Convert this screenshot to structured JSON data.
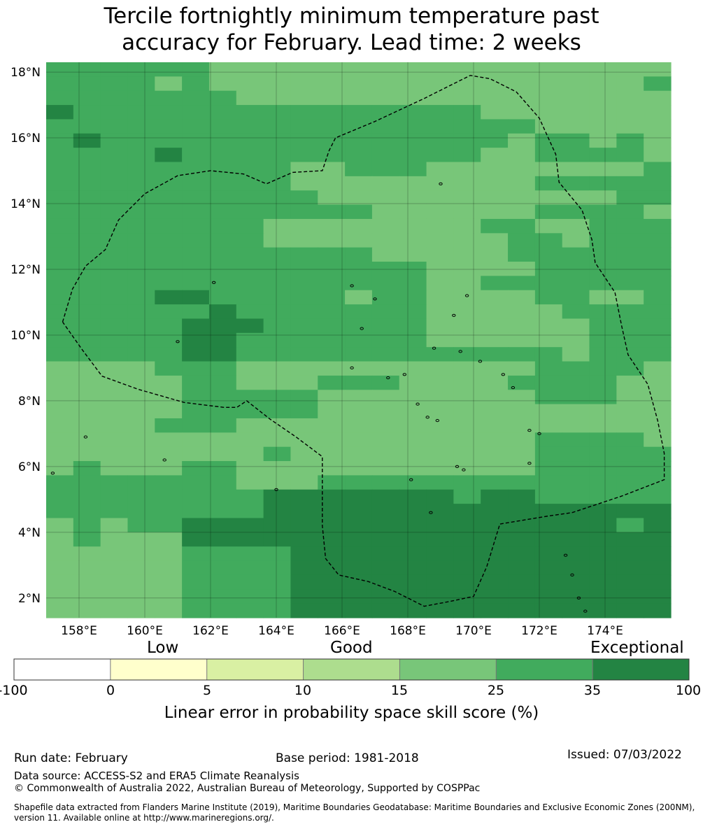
{
  "title": "Tercile fortnightly minimum temperature past\naccuracy for February. Lead time: 2 weeks",
  "map": {
    "lon_range": [
      157.0,
      176.0
    ],
    "lat_range": [
      1.4,
      18.3
    ],
    "lon_ticks": [
      "158°E",
      "160°E",
      "162°E",
      "164°E",
      "166°E",
      "168°E",
      "170°E",
      "172°E",
      "174°E"
    ],
    "lat_ticks": [
      "18°N",
      "16°N",
      "14°N",
      "12°N",
      "10°N",
      "8°N",
      "6°N",
      "4°N",
      "2°N"
    ],
    "colors": {
      "c0": "#ffffcc",
      "c1": "#d9f0a3",
      "c2": "#addd8e",
      "c3": "#78c679",
      "c4": "#41ab5d",
      "c5": "#238443"
    },
    "grid_rows": [
      "44444433333333333333333",
      "44443433333333333333334",
      "44444443333333333333333",
      "54444444444444443333333",
      "44444444444444444433333",
      "45444444444444444344343",
      "44445444444444443344443",
      "44444444433444333333334",
      "44444444433333333344444",
      "44444444443333333333344",
      "44444444444433333344443",
      "44444444333333334433444",
      "44444444333333333443444",
      "44444444444433333444444",
      "44444444444444333344444",
      "44444444444444334444444",
      "44445544444344333344334",
      "44444454444444333334444",
      "44444555444444333333444",
      "44444554444444333333444",
      "44444554444444444443444",
      "33334443333333333344443",
      "33333443334443333444433",
      "33333444443333333344433",
      "33333444443333333333333",
      "33334443333333333333333",
      "33333333333333333344443",
      "33333333433333333344444",
      "34333443333333333344444",
      "44444443334444444444444",
      "44444444555555545544444",
      "44444444555555555555555",
      "34344555555555555555545",
      "34333555555555555555555",
      "33333444455555555555555",
      "33333444455555555555555",
      "33333444455555555555555",
      "33333444455555555555555",
      "33333444455555555555555"
    ],
    "boundary_1": [
      [
        157.5,
        10.4
      ],
      [
        157.8,
        11.4
      ],
      [
        158.2,
        12.1
      ],
      [
        158.8,
        12.6
      ],
      [
        159.2,
        13.5
      ],
      [
        160.0,
        14.3
      ],
      [
        161.0,
        14.85
      ],
      [
        162.0,
        15.0
      ],
      [
        163.0,
        14.9
      ],
      [
        163.7,
        14.6
      ],
      [
        164.5,
        14.95
      ],
      [
        165.4,
        15.0
      ],
      [
        165.6,
        15.6
      ],
      [
        165.8,
        16.0
      ],
      [
        167.0,
        16.5
      ],
      [
        168.5,
        17.2
      ],
      [
        169.9,
        17.9
      ],
      [
        170.5,
        17.8
      ],
      [
        171.3,
        17.4
      ],
      [
        172.0,
        16.6
      ],
      [
        172.5,
        15.5
      ],
      [
        172.6,
        14.65
      ],
      [
        173.3,
        13.8
      ],
      [
        173.6,
        12.9
      ],
      [
        173.7,
        12.2
      ],
      [
        174.3,
        11.3
      ],
      [
        174.5,
        10.3
      ],
      [
        174.7,
        9.4
      ],
      [
        175.3,
        8.5
      ],
      [
        175.6,
        7.4
      ],
      [
        175.8,
        6.4
      ],
      [
        175.8,
        5.6
      ],
      [
        174.5,
        5.1
      ],
      [
        173.0,
        4.6
      ],
      [
        172.3,
        4.5
      ],
      [
        170.8,
        4.25
      ],
      [
        170.4,
        2.95
      ],
      [
        170.0,
        2.05
      ],
      [
        169.3,
        1.9
      ],
      [
        168.5,
        1.75
      ],
      [
        167.6,
        2.2
      ],
      [
        166.8,
        2.5
      ],
      [
        165.9,
        2.7
      ],
      [
        165.5,
        3.2
      ],
      [
        165.4,
        4.2
      ],
      [
        165.4,
        6.3
      ],
      [
        164.6,
        6.9
      ],
      [
        163.8,
        7.45
      ],
      [
        163.1,
        8.0
      ],
      [
        162.8,
        7.8
      ],
      [
        162.4,
        7.8
      ],
      [
        161.2,
        7.95
      ],
      [
        159.8,
        8.35
      ],
      [
        158.7,
        8.75
      ],
      [
        158.1,
        9.55
      ],
      [
        157.5,
        10.4
      ]
    ],
    "islands": [
      [
        158.2,
        6.9
      ],
      [
        160.6,
        6.2
      ],
      [
        164.0,
        5.3
      ],
      [
        166.3,
        11.5
      ],
      [
        167.0,
        11.1
      ],
      [
        162.1,
        11.6
      ],
      [
        169.4,
        10.6
      ],
      [
        168.8,
        9.6
      ],
      [
        169.6,
        9.5
      ],
      [
        170.2,
        9.2
      ],
      [
        170.9,
        8.8
      ],
      [
        171.2,
        8.4
      ],
      [
        167.9,
        8.8
      ],
      [
        167.4,
        8.7
      ],
      [
        168.3,
        7.9
      ],
      [
        168.6,
        7.5
      ],
      [
        168.9,
        7.4
      ],
      [
        171.7,
        7.1
      ],
      [
        172.0,
        7.0
      ],
      [
        169.5,
        6.0
      ],
      [
        169.7,
        5.9
      ],
      [
        171.7,
        6.1
      ],
      [
        168.1,
        5.6
      ],
      [
        168.7,
        4.6
      ],
      [
        172.8,
        3.3
      ],
      [
        173.0,
        2.7
      ],
      [
        173.2,
        2.0
      ],
      [
        173.4,
        1.6
      ],
      [
        169.0,
        14.6
      ],
      [
        169.8,
        11.2
      ],
      [
        157.2,
        5.8
      ],
      [
        161.0,
        9.8
      ],
      [
        166.6,
        10.2
      ],
      [
        166.3,
        9.0
      ]
    ]
  },
  "colorbar": {
    "categories": [
      "Low",
      "Good",
      "Exceptional"
    ],
    "tick_labels": [
      "-100",
      "0",
      "5",
      "10",
      "15",
      "25",
      "35",
      "100"
    ],
    "colors": [
      "#ffffff",
      "#ffffcc",
      "#d9f0a3",
      "#addd8e",
      "#78c679",
      "#41ab5d",
      "#238443"
    ],
    "label": "Linear error in probability space skill score (%)"
  },
  "footer": {
    "run_date": "Run date: February",
    "base_period": "Base period: 1981-2018",
    "issued": "Issued: 07/03/2022",
    "data_source": "Data source: ACCESS-S2 and ERA5 Climate Reanalysis",
    "copyright": "© Commonwealth of Australia 2022, Australian Bureau of Meteorology, Supported by COSPPac",
    "shapefile": "Shapefile data extracted from Flanders Marine Institute (2019), Maritime Boundaries Geodatabase: Maritime Boundaries and Exclusive Economic Zones (200NM), version 11. Available online at http://www.marineregions.org/."
  }
}
